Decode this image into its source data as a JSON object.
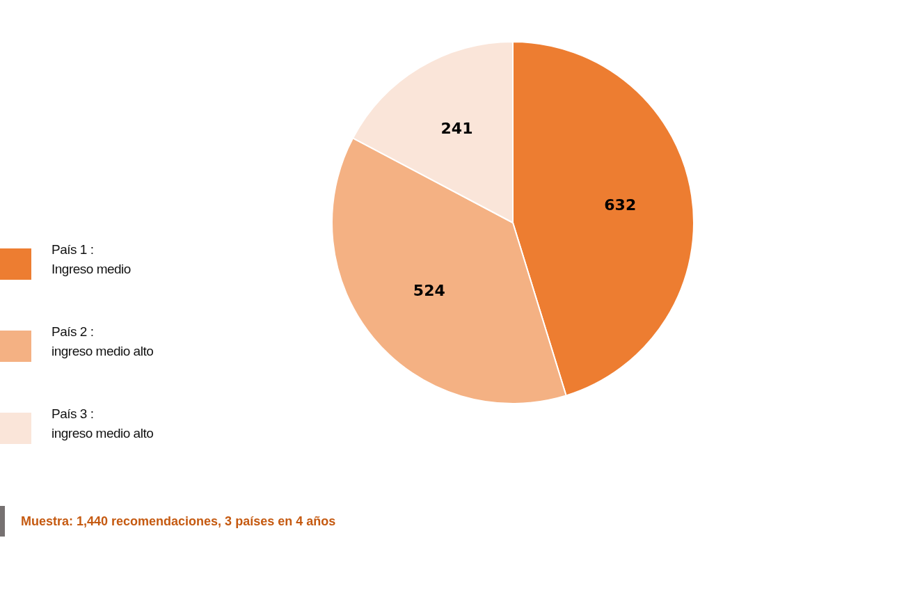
{
  "chart_data": {
    "type": "pie",
    "categories": [
      "País 1 :\nIngreso medio",
      "País 2 :\ningreso medio alto",
      "País 3 :\ningreso medio alto"
    ],
    "values": [
      632,
      524,
      241
    ],
    "colors": [
      "#ed7d31",
      "#f4b183",
      "#fae5d9"
    ],
    "data_labels": true,
    "legend": "left",
    "annotations": [
      "Muestra: 1,440 recomendaciones, 3 países en 4 años"
    ]
  }
}
